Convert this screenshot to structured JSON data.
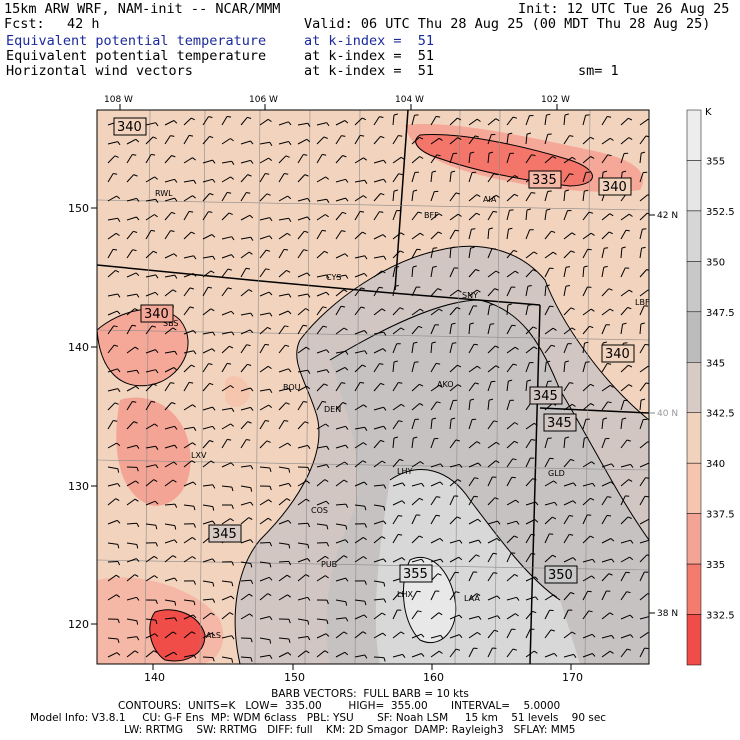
{
  "header": {
    "model": "15km ARW WRF, NAM-init -- NCAR/MMM",
    "init": "Init: 12 UTC Tue 26 Aug 25",
    "fcst_label": "Fcst:",
    "fcst_value": "42 h",
    "valid": "Valid: 06 UTC Thu 28 Aug 25 (00 MDT Thu 28 Aug 25)",
    "field1": "Equivalent potential temperature",
    "field1_level": "at k-index =  51",
    "field2": "Equivalent potential temperature",
    "field2_level": "at k-index =  51",
    "field3": "Horizontal wind vectors",
    "field3_level": "at k-index =  51",
    "smoothing": "sm= 1"
  },
  "map": {
    "top_longitudes": [
      "108 W",
      "106 W",
      "104 W",
      "102 W"
    ],
    "left_ticks": [
      "150",
      "140",
      "130",
      "120"
    ],
    "bottom_ticks": [
      "140",
      "150",
      "160",
      "170"
    ],
    "right_latitudes": [
      "42 N",
      "40 N",
      "38 N"
    ],
    "stations": [
      "RWL",
      "BFF",
      "AIA",
      "CYS",
      "SNY",
      "LBF",
      "BOU",
      "DEN",
      "AKO",
      "LXV",
      "LHY",
      "GLD",
      "COS",
      "PUB",
      "LHX",
      "LAA",
      "ALS",
      "SBS"
    ],
    "contour_labels": [
      "340",
      "335",
      "340",
      "340",
      "340",
      "345",
      "345",
      "345",
      "355",
      "350"
    ]
  },
  "colorbar": {
    "unit": "K",
    "levels": [
      "355",
      "352.5",
      "350",
      "347.5",
      "345",
      "342.5",
      "340",
      "337.5",
      "335",
      "332.5"
    ],
    "colors": [
      "#e6e6e6",
      "#d6d6d6",
      "#c8c8c8",
      "#bcbcbc",
      "#d8cac4",
      "#f1d2bc",
      "#f6c5ae",
      "#f4a494",
      "#f47c6e",
      "#f04c48"
    ]
  },
  "footer": {
    "barbs": "BARB VECTORS:  FULL BARB = 10 kts",
    "contours": "CONTOURS:  UNITS=K   LOW=  335.00        HIGH=  355.00       INTERVAL=    5.0000",
    "model_info": "Model Info: V3.8.1     CU: G-F Ens  MP: WDM 6class   PBL: YSU       SF: Noah LSM     15 km    51 levels    90 sec",
    "physics": "LW: RRTMG    SW: RRTMG   DIFF: full    KM: 2D Smagor  DAMP: Rayleigh3   SFLAY: MM5"
  }
}
